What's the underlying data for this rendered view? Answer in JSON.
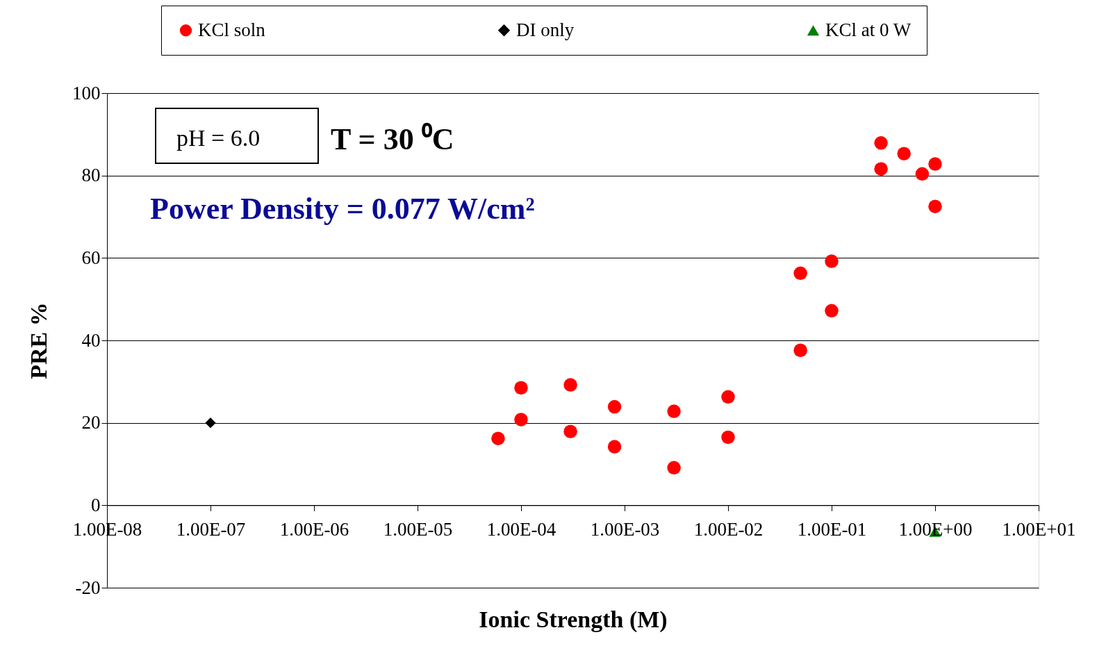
{
  "chart_data": {
    "type": "scatter",
    "xlabel": "Ionic Strength (M)",
    "ylabel": "PRE %",
    "log": "x",
    "xlim": [
      1e-08,
      10
    ],
    "ylim": [
      -20,
      100
    ],
    "xticks": [
      {
        "value": 1e-08,
        "label": "1.00E-08"
      },
      {
        "value": 1e-07,
        "label": "1.00E-07"
      },
      {
        "value": 1e-06,
        "label": "1.00E-06"
      },
      {
        "value": 1e-05,
        "label": "1.00E-05"
      },
      {
        "value": 0.0001,
        "label": "1.00E-04"
      },
      {
        "value": 0.001,
        "label": "1.00E-03"
      },
      {
        "value": 0.01,
        "label": "1.00E-02"
      },
      {
        "value": 0.1,
        "label": "1.00E-01"
      },
      {
        "value": 1,
        "label": "1.00E+00"
      },
      {
        "value": 10,
        "label": "1.00E+01"
      }
    ],
    "yticks": [
      -20,
      0,
      20,
      40,
      60,
      80,
      100
    ],
    "grid": "y",
    "legend": "top",
    "series": [
      {
        "name": "KCl soln",
        "color": "#ff0000",
        "marker": "circle",
        "x": [
          6e-05,
          0.0001,
          0.0001,
          0.0003,
          0.0003,
          0.0008,
          0.0008,
          0.003,
          0.003,
          0.01,
          0.01,
          0.05,
          0.05,
          0.1,
          0.1,
          0.3,
          0.3,
          0.5,
          0.75,
          1,
          1
        ],
        "values": [
          16.2,
          28.5,
          20.8,
          29.2,
          17.9,
          23.9,
          14.2,
          22.8,
          9.1,
          26.3,
          16.5,
          56.3,
          37.6,
          59.2,
          47.2,
          87.9,
          81.6,
          85.3,
          80.4,
          82.8,
          72.5
        ]
      },
      {
        "name": "DI only",
        "color": "#000000",
        "marker": "diamond",
        "x": [
          1e-07
        ],
        "values": [
          20
        ]
      },
      {
        "name": "KCl at 0 W",
        "color": "#008000",
        "marker": "triangle",
        "x": [
          1
        ],
        "values": [
          -6.4
        ]
      }
    ],
    "annotations": [
      "pH = 6.0",
      "T = 30 ⁰C",
      "Power Density = 0.077 W/cm²"
    ]
  }
}
